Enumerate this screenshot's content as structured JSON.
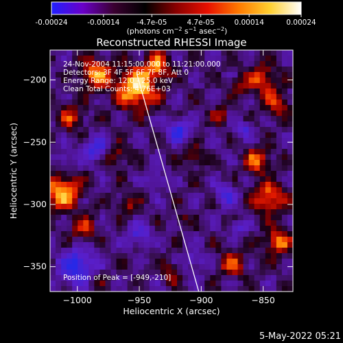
{
  "colorbar": {
    "tick_labels": [
      "-0.00024",
      "-0.00014",
      "-4.7e-05",
      "4.7e-05",
      "0.00014",
      "0.00024"
    ],
    "tick_values": [
      -0.00024,
      -0.00014,
      -4.7e-05,
      4.7e-05,
      0.00014,
      0.00024
    ],
    "range": [
      -0.00024,
      0.00024
    ],
    "colors": [
      "#2020ff",
      "#6a00c8",
      "#3a0030",
      "#000000",
      "#8a0000",
      "#e81000",
      "#ff7a00",
      "#ffd030",
      "#ffffff"
    ]
  },
  "chart_data": {
    "type": "heatmap",
    "title": "Reconstructed RHESSI Image",
    "xlabel": "Heliocentric X (arcsec)",
    "ylabel": "Heliocentric Y (arcsec)",
    "xlim": [
      -1022,
      -826
    ],
    "ylim": [
      -370,
      -176
    ],
    "x_ticks": [
      -1000,
      -950,
      -900,
      -850
    ],
    "y_ticks": [
      -350,
      -300,
      -250,
      -200
    ],
    "x_tick_labels": [
      "−1000",
      "−950",
      "−900",
      "−850"
    ],
    "y_tick_labels": [
      "−350",
      "−300",
      "−250",
      "−200"
    ],
    "annotations": {
      "time": "24-Nov-2004 11:15:00.000 to 11:21:00.000",
      "detectors": "Detectors: 3F 4F 5F 6F 7F 8F, Att 0",
      "energy": "Energy Range: 12.0 - 25.0 keV",
      "clean": "Clean    Total Counts: 4.76E+03",
      "peak": "Position of Peak = [-949,-210]"
    },
    "peak": {
      "x": -949,
      "y": -210
    },
    "limb_line": {
      "x1": -952,
      "y1": -195,
      "x2": -902,
      "y2": -370
    }
  },
  "footer": {
    "date": "5-May-2022 05:21"
  }
}
